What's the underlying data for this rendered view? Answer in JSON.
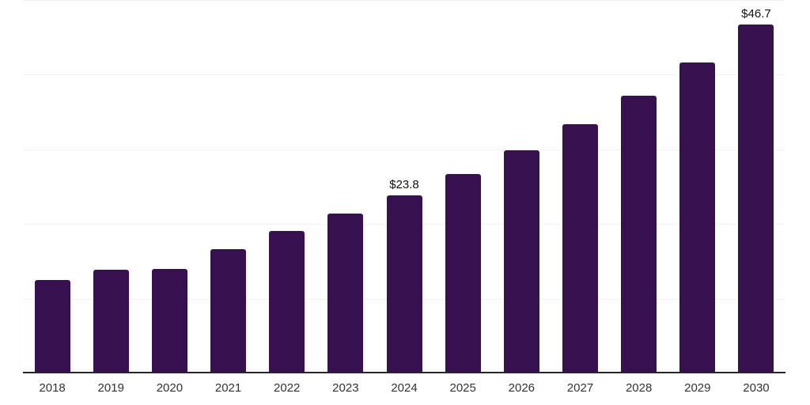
{
  "chart_data": {
    "type": "bar",
    "title": "",
    "xlabel": "",
    "ylabel": "",
    "categories": [
      "2018",
      "2019",
      "2020",
      "2021",
      "2022",
      "2023",
      "2024",
      "2025",
      "2026",
      "2027",
      "2028",
      "2029",
      "2030"
    ],
    "values": [
      12.5,
      13.9,
      14.0,
      16.6,
      19.1,
      21.4,
      23.8,
      26.7,
      29.9,
      33.4,
      37.2,
      41.6,
      46.7
    ],
    "data_labels": [
      "",
      "",
      "",
      "",
      "",
      "",
      "$23.8",
      "",
      "",
      "",
      "",
      "",
      "$46.7"
    ],
    "ylim": [
      0,
      50
    ],
    "gridline_values": [
      10,
      20,
      30,
      40,
      50
    ],
    "grid": "horizontal",
    "legend": "none",
    "bar_color": "#37114f",
    "gridline_color": "#f2f2f2",
    "axis_line_color": "#262626",
    "data_label_color": "#111111",
    "tick_label_color": "#333333"
  }
}
